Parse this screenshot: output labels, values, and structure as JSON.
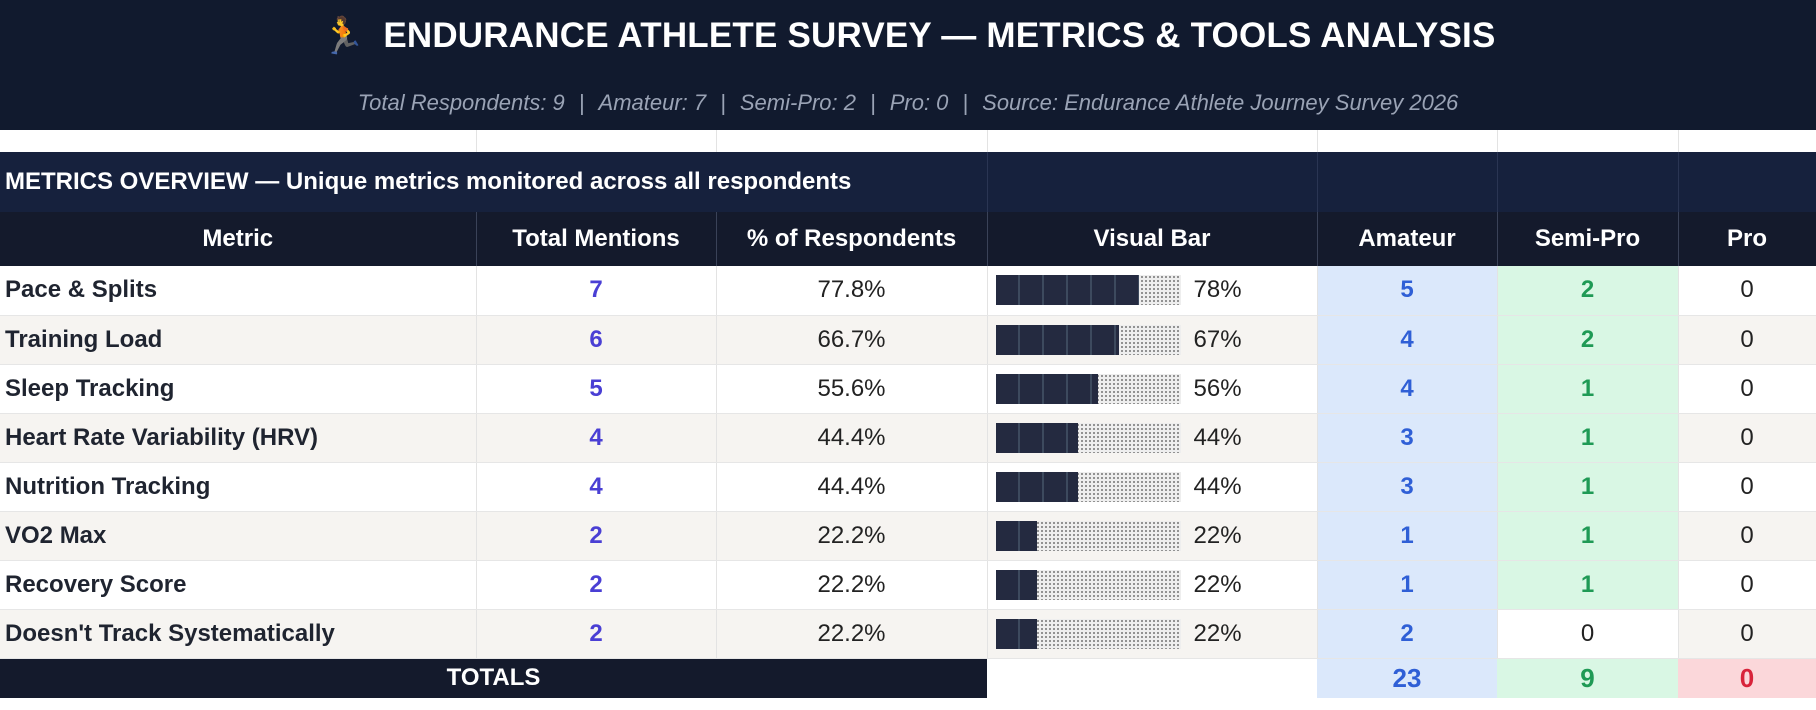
{
  "header": {
    "icon": "runner-icon",
    "title": "ENDURANCE ATHLETE SURVEY — METRICS & TOOLS ANALYSIS",
    "subtitle_parts": [
      "Total Respondents: 9",
      "Amateur: 7",
      "Semi-Pro: 2",
      "Pro: 0",
      "Source: Endurance Athlete Journey Survey 2026"
    ],
    "separator": "|"
  },
  "section": {
    "title": "METRICS OVERVIEW  —  Unique metrics monitored across all respondents"
  },
  "table": {
    "columns": [
      "Metric",
      "Total Mentions",
      "% of Respondents",
      "Visual Bar",
      "Amateur",
      "Semi-Pro",
      "Pro"
    ],
    "rows": [
      {
        "metric": "Pace & Splits",
        "mentions": "7",
        "pct": "77.8%",
        "bar": 0.778,
        "bar_label": "78%",
        "amateur": "5",
        "semipro": "2",
        "pro": "0"
      },
      {
        "metric": "Training Load",
        "mentions": "6",
        "pct": "66.7%",
        "bar": 0.667,
        "bar_label": "67%",
        "amateur": "4",
        "semipro": "2",
        "pro": "0"
      },
      {
        "metric": "Sleep Tracking",
        "mentions": "5",
        "pct": "55.6%",
        "bar": 0.556,
        "bar_label": "56%",
        "amateur": "4",
        "semipro": "1",
        "pro": "0"
      },
      {
        "metric": "Heart Rate Variability (HRV)",
        "mentions": "4",
        "pct": "44.4%",
        "bar": 0.444,
        "bar_label": "44%",
        "amateur": "3",
        "semipro": "1",
        "pro": "0"
      },
      {
        "metric": "Nutrition Tracking",
        "mentions": "4",
        "pct": "44.4%",
        "bar": 0.444,
        "bar_label": "44%",
        "amateur": "3",
        "semipro": "1",
        "pro": "0"
      },
      {
        "metric": "VO2 Max",
        "mentions": "2",
        "pct": "22.2%",
        "bar": 0.222,
        "bar_label": "22%",
        "amateur": "1",
        "semipro": "1",
        "pro": "0"
      },
      {
        "metric": "Recovery Score",
        "mentions": "2",
        "pct": "22.2%",
        "bar": 0.222,
        "bar_label": "22%",
        "amateur": "1",
        "semipro": "1",
        "pro": "0"
      },
      {
        "metric": "Doesn't Track Systematically",
        "mentions": "2",
        "pct": "22.2%",
        "bar": 0.222,
        "bar_label": "22%",
        "amateur": "2",
        "semipro": "0",
        "pro": "0"
      }
    ],
    "totals": {
      "label": "TOTALS",
      "amateur": "23",
      "semipro": "9",
      "pro": "0"
    }
  },
  "colors": {
    "header_bg": "#111a2e",
    "section_bg": "#16213d",
    "amateur_bg": "#dbe8fb",
    "amateur_text": "#2f5fd6",
    "semipro_bg": "#d9f7e4",
    "semipro_text": "#1f9a55",
    "pro_total_bg": "#fbd7da",
    "pro_total_text": "#d8233a",
    "mentions_text": "#4a3fd4"
  }
}
